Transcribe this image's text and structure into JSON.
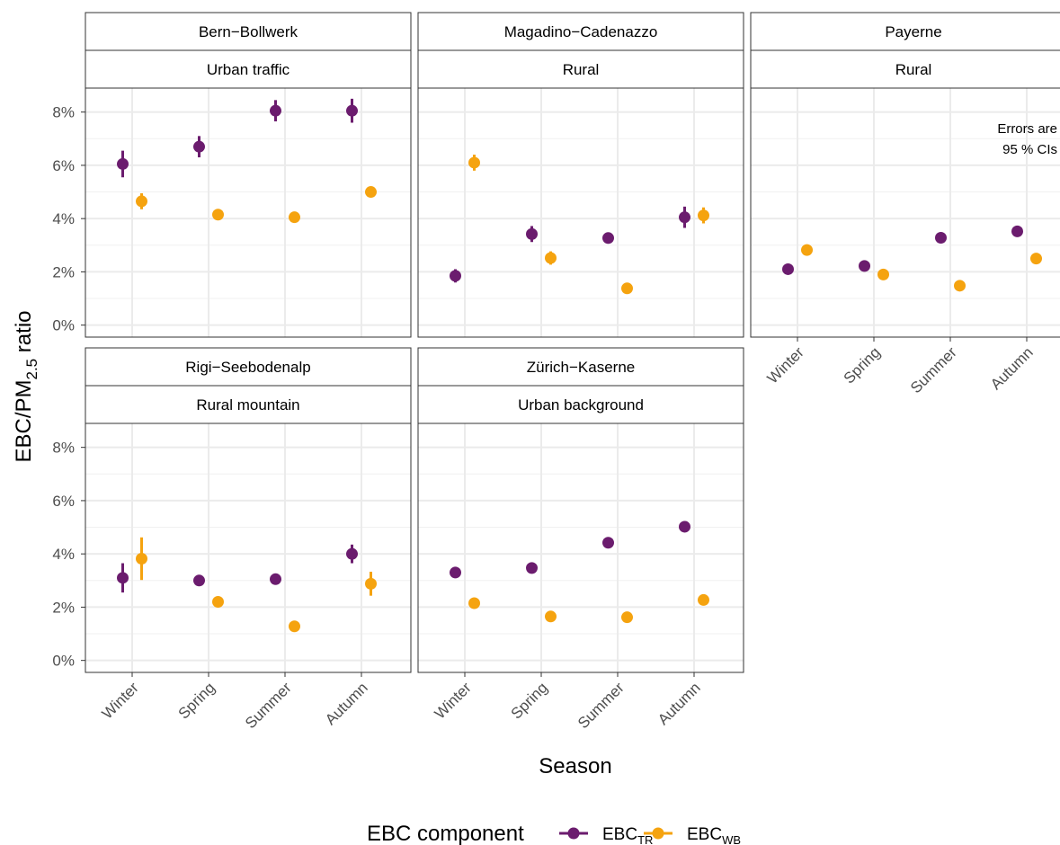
{
  "chart_data": [
    {
      "type": "pointrange",
      "title": "Bern−Bollwerk",
      "subtitle": "Urban traffic",
      "categories": [
        "Winter",
        "Spring",
        "Summer",
        "Autumn"
      ],
      "series": [
        {
          "name": "EBC",
          "subscript": "TR",
          "color": "#6b1c6e",
          "values": [
            6.05,
            6.7,
            8.05,
            8.05
          ],
          "errors": [
            0.5,
            0.4,
            0.4,
            0.45
          ]
        },
        {
          "name": "EBC",
          "subscript": "WB",
          "color": "#f5a30f",
          "values": [
            4.65,
            4.15,
            4.05,
            5.0
          ],
          "errors": [
            0.3,
            0.15,
            0.1,
            0.2
          ]
        }
      ],
      "ylim": [
        -0.45,
        8.9
      ],
      "yticks": [
        {
          "value": 0,
          "label": "0%"
        },
        {
          "value": 2,
          "label": "2%"
        },
        {
          "value": 4,
          "label": "4%"
        },
        {
          "value": 6,
          "label": "6%"
        },
        {
          "value": 8,
          "label": "8%"
        }
      ],
      "grid": true
    },
    {
      "type": "pointrange",
      "title": "Magadino−Cadenazzo",
      "subtitle": "Rural",
      "categories": [
        "Winter",
        "Spring",
        "Summer",
        "Autumn"
      ],
      "series": [
        {
          "name": "EBC",
          "subscript": "TR",
          "color": "#6b1c6e",
          "values": [
            1.85,
            3.42,
            3.27,
            4.05
          ],
          "errors": [
            0.25,
            0.3,
            0.1,
            0.4
          ]
        },
        {
          "name": "EBC",
          "subscript": "WB",
          "color": "#f5a30f",
          "values": [
            6.1,
            2.52,
            1.38,
            4.12
          ],
          "errors": [
            0.3,
            0.25,
            0.1,
            0.3
          ]
        }
      ],
      "ylim": [
        -0.45,
        8.9
      ],
      "yticks": [
        {
          "value": 0,
          "label": "0%"
        },
        {
          "value": 2,
          "label": "2%"
        },
        {
          "value": 4,
          "label": "4%"
        },
        {
          "value": 6,
          "label": "6%"
        },
        {
          "value": 8,
          "label": "8%"
        }
      ],
      "grid": true
    },
    {
      "type": "pointrange",
      "title": "Payerne",
      "subtitle": "Rural",
      "annotation": [
        "Errors are",
        "95 % CIs"
      ],
      "categories": [
        "Winter",
        "Spring",
        "Summer",
        "Autumn"
      ],
      "series": [
        {
          "name": "EBC",
          "subscript": "TR",
          "color": "#6b1c6e",
          "values": [
            2.1,
            2.22,
            3.28,
            3.52
          ],
          "errors": [
            0.2,
            0.1,
            0.1,
            0.2
          ]
        },
        {
          "name": "EBC",
          "subscript": "WB",
          "color": "#f5a30f",
          "values": [
            2.82,
            1.9,
            1.48,
            2.5
          ],
          "errors": [
            0.2,
            0.1,
            0.1,
            0.1
          ]
        }
      ],
      "ylim": [
        -0.45,
        8.9
      ],
      "yticks": [
        {
          "value": 0,
          "label": "0%"
        },
        {
          "value": 2,
          "label": "2%"
        },
        {
          "value": 4,
          "label": "4%"
        },
        {
          "value": 6,
          "label": "6%"
        },
        {
          "value": 8,
          "label": "8%"
        }
      ],
      "grid": true
    },
    {
      "type": "pointrange",
      "title": "Rigi−Seebodenalp",
      "subtitle": "Rural mountain",
      "categories": [
        "Winter",
        "Spring",
        "Summer",
        "Autumn"
      ],
      "series": [
        {
          "name": "EBC",
          "subscript": "TR",
          "color": "#6b1c6e",
          "values": [
            3.1,
            3.0,
            3.05,
            4.0
          ],
          "errors": [
            0.55,
            0.2,
            0.1,
            0.35
          ]
        },
        {
          "name": "EBC",
          "subscript": "WB",
          "color": "#f5a30f",
          "values": [
            3.82,
            2.2,
            1.28,
            2.88
          ],
          "errors": [
            0.8,
            0.2,
            0.1,
            0.45
          ]
        }
      ],
      "ylim": [
        -0.45,
        8.9
      ],
      "yticks": [
        {
          "value": 0,
          "label": "0%"
        },
        {
          "value": 2,
          "label": "2%"
        },
        {
          "value": 4,
          "label": "4%"
        },
        {
          "value": 6,
          "label": "6%"
        },
        {
          "value": 8,
          "label": "8%"
        }
      ],
      "grid": true
    },
    {
      "type": "pointrange",
      "title": "Zürich−Kaserne",
      "subtitle": "Urban background",
      "categories": [
        "Winter",
        "Spring",
        "Summer",
        "Autumn"
      ],
      "series": [
        {
          "name": "EBC",
          "subscript": "TR",
          "color": "#6b1c6e",
          "values": [
            3.3,
            3.47,
            4.42,
            5.02
          ],
          "errors": [
            0.2,
            0.1,
            0.1,
            0.2
          ]
        },
        {
          "name": "EBC",
          "subscript": "WB",
          "color": "#f5a30f",
          "values": [
            2.15,
            1.65,
            1.62,
            2.27
          ],
          "errors": [
            0.1,
            0.1,
            0.1,
            0.1
          ]
        }
      ],
      "ylim": [
        -0.45,
        8.9
      ],
      "yticks": [
        {
          "value": 0,
          "label": "0%"
        },
        {
          "value": 2,
          "label": "2%"
        },
        {
          "value": 4,
          "label": "4%"
        },
        {
          "value": 6,
          "label": "6%"
        },
        {
          "value": 8,
          "label": "8%"
        }
      ],
      "grid": true
    }
  ],
  "xlabel": "Season",
  "ylabel": {
    "text": "EBC/PM",
    "subscript": "2.5",
    "suffix": " ratio"
  },
  "legend_title": "EBC component"
}
